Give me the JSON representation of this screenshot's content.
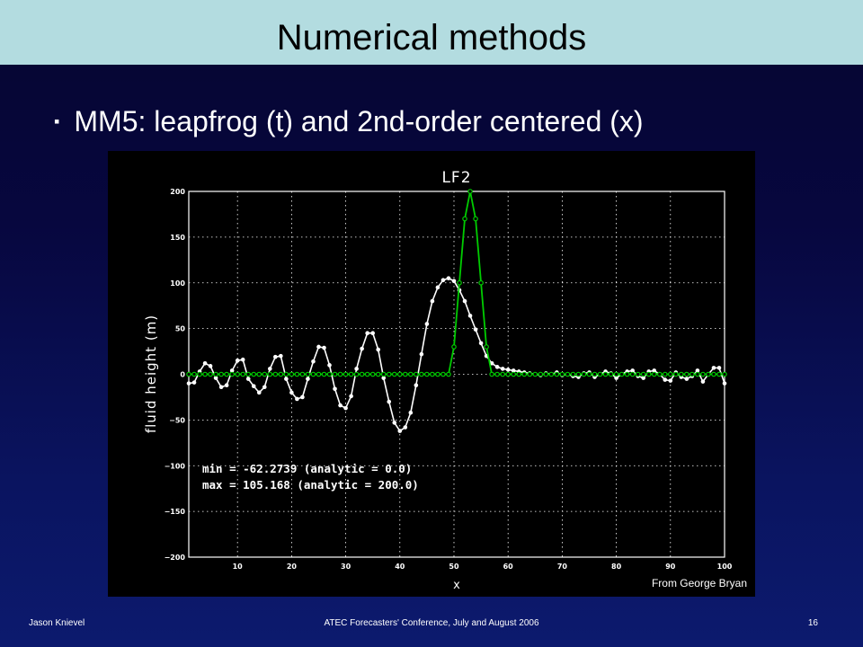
{
  "slide": {
    "title": "Numerical methods",
    "bullet_text": "MM5: leapfrog (t) and 2nd-order centered (x)",
    "bullet_icon": "square-bullet-icon"
  },
  "footer": {
    "author": "Jason Knievel",
    "conference": "ATEC Forecasters' Conference, July and August 2006",
    "page_number": "16"
  },
  "chart_data": {
    "type": "line",
    "title": "LF2",
    "xlabel": "x",
    "ylabel": "fluid height (m)",
    "xlim": [
      1,
      100
    ],
    "ylim": [
      -200,
      200
    ],
    "x_ticks": [
      10,
      20,
      30,
      40,
      50,
      60,
      70,
      80,
      90,
      100
    ],
    "y_ticks": [
      200,
      150,
      100,
      50,
      0,
      -50,
      -100,
      -150,
      -200
    ],
    "grid": true,
    "annotations": [
      "min = -62.2739 (analytic = 0.0)",
      "max = 105.168 (analytic = 200.0)"
    ],
    "credit": "From George Bryan",
    "colors": {
      "analytic": "#00cc00",
      "numerical": "#ffffff",
      "background": "#000000"
    },
    "series": [
      {
        "style": "numerical",
        "x": [
          1,
          2,
          3,
          4,
          5,
          6,
          7,
          8,
          9,
          10,
          11,
          12,
          13,
          14,
          15,
          16,
          17,
          18,
          19,
          20,
          21,
          22,
          23,
          24,
          25,
          26,
          27,
          28,
          29,
          30,
          31,
          32,
          33,
          34,
          35,
          36,
          37,
          38,
          39,
          40,
          41,
          42,
          43,
          44,
          45,
          46,
          47,
          48,
          49,
          50,
          51,
          52,
          53,
          54,
          55,
          56,
          57,
          58,
          59,
          60,
          61,
          62,
          63,
          64,
          65,
          66,
          67,
          68,
          69,
          70,
          71,
          72,
          73,
          74,
          75,
          76,
          77,
          78,
          79,
          80,
          81,
          82,
          83,
          84,
          85,
          86,
          87,
          88,
          89,
          90,
          91,
          92,
          93,
          94,
          95,
          96,
          97,
          98,
          99,
          100
        ],
        "values": [
          -10,
          -9,
          3,
          12,
          9,
          -4,
          -14,
          -12,
          4,
          15,
          16,
          -5,
          -13,
          -20,
          -14,
          6,
          19,
          20,
          -5,
          -20,
          -27,
          -25,
          -5,
          14,
          30,
          29,
          10,
          -16,
          -34,
          -37,
          -24,
          6,
          28,
          45,
          45,
          27,
          -4,
          -30,
          -53,
          -62,
          -58,
          -42,
          -12,
          22,
          55,
          80,
          95,
          103,
          105,
          102,
          92,
          80,
          64,
          49,
          34,
          20,
          12,
          8,
          6,
          5,
          4,
          3,
          2,
          1,
          0,
          -1,
          1,
          0,
          2,
          -1,
          0,
          -2,
          -3,
          1,
          2,
          -3,
          0,
          3,
          1,
          -4,
          0,
          3,
          4,
          -2,
          -4,
          3,
          4,
          0,
          -6,
          -7,
          2,
          -3,
          -5,
          -2,
          4,
          -8,
          0,
          7,
          7,
          -10
        ]
      },
      {
        "style": "analytic",
        "x": [
          1,
          2,
          3,
          4,
          5,
          6,
          7,
          8,
          9,
          10,
          11,
          12,
          13,
          14,
          15,
          16,
          17,
          18,
          19,
          20,
          21,
          22,
          23,
          24,
          25,
          26,
          27,
          28,
          29,
          30,
          31,
          32,
          33,
          34,
          35,
          36,
          37,
          38,
          39,
          40,
          41,
          42,
          43,
          44,
          45,
          46,
          47,
          48,
          49,
          50,
          51,
          52,
          53,
          54,
          55,
          56,
          57,
          58,
          59,
          60,
          61,
          62,
          63,
          64,
          65,
          66,
          67,
          68,
          69,
          70,
          71,
          72,
          73,
          74,
          75,
          76,
          77,
          78,
          79,
          80,
          81,
          82,
          83,
          84,
          85,
          86,
          87,
          88,
          89,
          90,
          91,
          92,
          93,
          94,
          95,
          96,
          97,
          98,
          99,
          100
        ],
        "values": [
          0,
          0,
          0,
          0,
          0,
          0,
          0,
          0,
          0,
          0,
          0,
          0,
          0,
          0,
          0,
          0,
          0,
          0,
          0,
          0,
          0,
          0,
          0,
          0,
          0,
          0,
          0,
          0,
          0,
          0,
          0,
          0,
          0,
          0,
          0,
          0,
          0,
          0,
          0,
          0,
          0,
          0,
          0,
          0,
          0,
          0,
          0,
          0,
          0,
          30,
          100,
          170,
          200,
          170,
          100,
          30,
          0,
          0,
          0,
          0,
          0,
          0,
          0,
          0,
          0,
          0,
          0,
          0,
          0,
          0,
          0,
          0,
          0,
          0,
          0,
          0,
          0,
          0,
          0,
          0,
          0,
          0,
          0,
          0,
          0,
          0,
          0,
          0,
          0,
          0,
          0,
          0,
          0,
          0,
          0,
          0,
          0,
          0,
          0,
          0
        ]
      }
    ]
  }
}
